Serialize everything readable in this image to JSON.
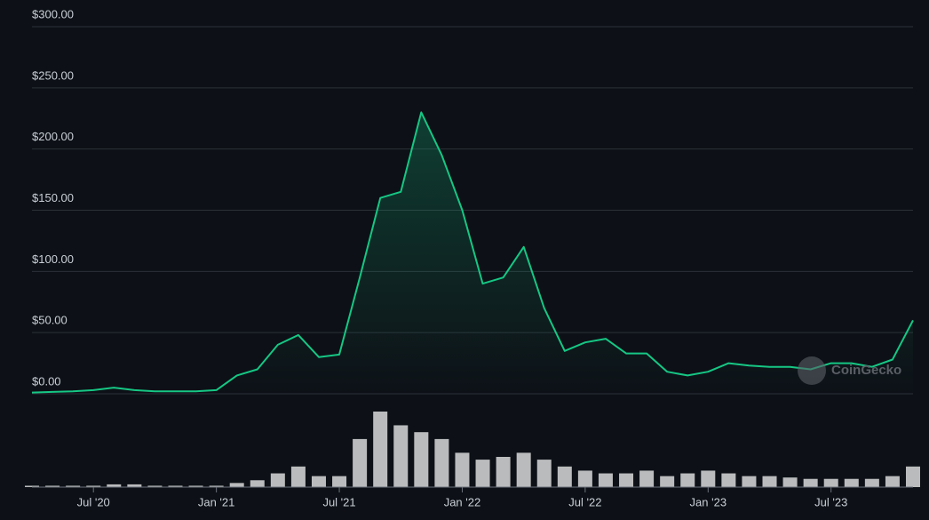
{
  "chart_data": {
    "type": "line",
    "x": [
      "2020-04",
      "2020-05",
      "2020-06",
      "2020-07",
      "2020-08",
      "2020-09",
      "2020-10",
      "2020-11",
      "2020-12",
      "2021-01",
      "2021-02",
      "2021-03",
      "2021-04",
      "2021-05",
      "2021-06",
      "2021-07",
      "2021-08",
      "2021-09",
      "2021-10",
      "2021-11",
      "2021-12",
      "2022-01",
      "2022-02",
      "2022-03",
      "2022-04",
      "2022-05",
      "2022-06",
      "2022-07",
      "2022-08",
      "2022-09",
      "2022-10",
      "2022-11",
      "2022-12",
      "2023-01",
      "2023-02",
      "2023-03",
      "2023-04",
      "2023-05",
      "2023-06",
      "2023-07",
      "2023-08",
      "2023-09",
      "2023-10",
      "2023-11"
    ],
    "values": [
      1,
      1.5,
      2,
      3,
      5,
      3,
      2,
      2,
      2,
      3,
      15,
      20,
      40,
      48,
      30,
      32,
      95,
      160,
      165,
      230,
      195,
      150,
      90,
      95,
      120,
      70,
      35,
      42,
      45,
      33,
      33,
      18,
      15,
      18,
      25,
      23,
      22,
      22,
      20,
      25,
      25,
      22,
      28,
      60
    ],
    "volumes": [
      1,
      1,
      1,
      1,
      2,
      2,
      1,
      1,
      1,
      1,
      3,
      5,
      10,
      15,
      8,
      8,
      35,
      55,
      45,
      40,
      35,
      25,
      20,
      22,
      25,
      20,
      15,
      12,
      10,
      10,
      12,
      8,
      10,
      12,
      10,
      8,
      8,
      7,
      6,
      6,
      6,
      6,
      8,
      15
    ],
    "color": "#16c784",
    "volume_color": "#d9d9d9",
    "xlim": [
      "2020-04",
      "2023-11"
    ],
    "xticks": [
      {
        "value": "2020-07",
        "label": "Jul '20"
      },
      {
        "value": "2021-01",
        "label": "Jan '21"
      },
      {
        "value": "2021-07",
        "label": "Jul '21"
      },
      {
        "value": "2022-01",
        "label": "Jan '22"
      },
      {
        "value": "2022-07",
        "label": "Jul '22"
      },
      {
        "value": "2023-01",
        "label": "Jan '23"
      },
      {
        "value": "2023-07",
        "label": "Jul '23"
      }
    ],
    "ylim": [
      0,
      300
    ],
    "yticks": [
      {
        "value": 0,
        "label": "$0.00"
      },
      {
        "value": 50,
        "label": "$50.00"
      },
      {
        "value": 100,
        "label": "$100.00"
      },
      {
        "value": 150,
        "label": "$150.00"
      },
      {
        "value": 200,
        "label": "$200.00"
      },
      {
        "value": 250,
        "label": "$250.00"
      },
      {
        "value": 300,
        "label": "$300.00"
      }
    ],
    "grid": true,
    "watermark": "CoinGecko"
  }
}
